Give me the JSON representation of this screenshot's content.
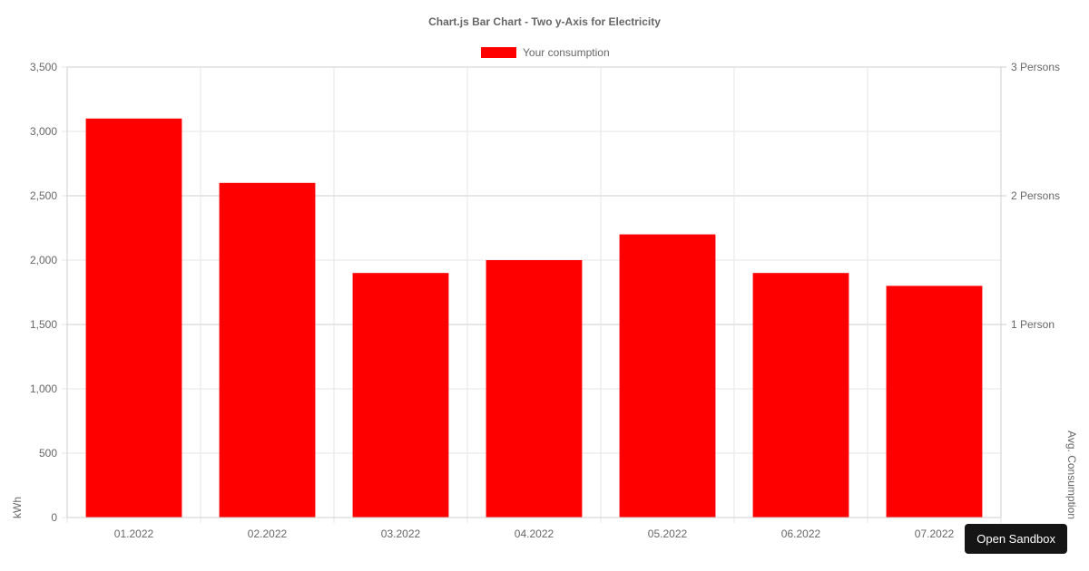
{
  "chart_data": {
    "type": "bar",
    "title": "Chart.js Bar Chart - Two y-Axis for Electricity",
    "categories": [
      "01.2022",
      "02.2022",
      "03.2022",
      "04.2022",
      "05.2022",
      "06.2022",
      "07.2022"
    ],
    "series": [
      {
        "name": "Your consumption",
        "color": "#ff0000",
        "axis": "left",
        "values": [
          3100,
          2600,
          1900,
          2000,
          2200,
          1900,
          1800
        ]
      }
    ],
    "ylabel": "kWh",
    "ylim": [
      0,
      3500
    ],
    "yticks": [
      0,
      500,
      1000,
      1500,
      2000,
      2500,
      3000,
      3500
    ],
    "ytick_labels": [
      "0",
      "500",
      "1,000",
      "1,500",
      "2,000",
      "2,500",
      "3,000",
      "3,500"
    ],
    "y2label": "Avg. Consumption",
    "y2ticks": [
      {
        "value": 3500,
        "label": "3 Persons"
      },
      {
        "value": 2500,
        "label": "2 Persons"
      },
      {
        "value": 1500,
        "label": "1 Person"
      }
    ],
    "legend_position": "top",
    "grid": true
  },
  "ui": {
    "open_sandbox_label": "Open Sandbox"
  }
}
